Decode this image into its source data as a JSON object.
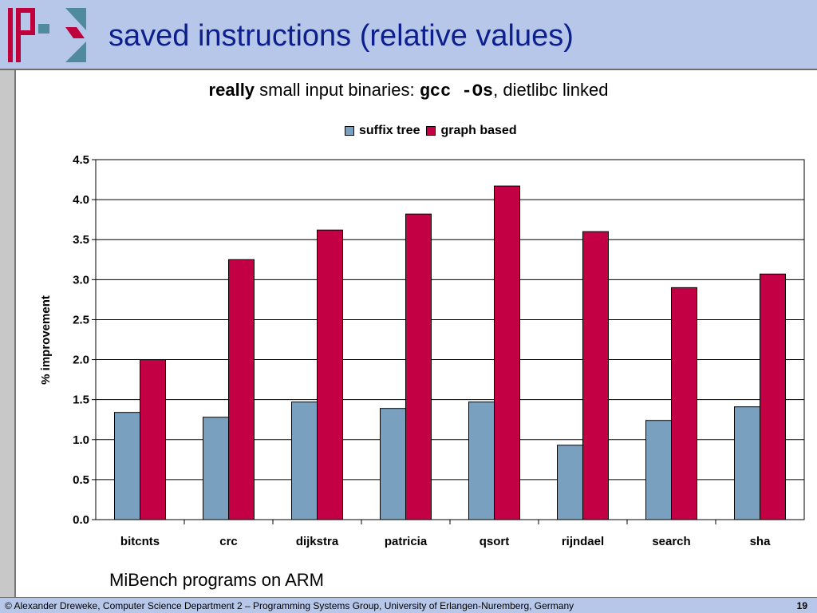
{
  "slide": {
    "title": "saved instructions (relative values)",
    "subtitle_bold": "really",
    "subtitle_text": " small input binaries: ",
    "subtitle_mono": "gcc -Os",
    "subtitle_tail": ", dietlibc linked",
    "caption": "MiBench programs on ARM",
    "footer_text": "© Alexander Dreweke, Computer Science Department 2 – Programming Systems Group, University of Erlangen-Nuremberg, Germany",
    "page_number": "19"
  },
  "colors": {
    "header_bg": "#b6c7ea",
    "title_text": "#0d1f8c",
    "logo_red": "#c0003c",
    "logo_teal": "#4f8a9f",
    "suffix_tree": "#7aa0bf",
    "graph_based": "#c40044"
  },
  "chart_data": {
    "type": "bar",
    "title": "",
    "xlabel": "",
    "ylabel": "% improvement",
    "ylim": [
      0,
      4.5
    ],
    "yticks": [
      "0.0",
      "0.5",
      "1.0",
      "1.5",
      "2.0",
      "2.5",
      "3.0",
      "3.5",
      "4.0",
      "4.5"
    ],
    "grid": true,
    "legend": "top",
    "categories": [
      "bitcnts",
      "crc",
      "dijkstra",
      "patricia",
      "qsort",
      "rijndael",
      "search",
      "sha"
    ],
    "series": [
      {
        "name": "suffix tree",
        "color": "#7aa0bf",
        "values": [
          1.34,
          1.28,
          1.47,
          1.39,
          1.47,
          0.93,
          1.24,
          1.41
        ]
      },
      {
        "name": "graph based",
        "color": "#c40044",
        "values": [
          2.0,
          3.25,
          3.62,
          3.82,
          4.17,
          3.6,
          2.9,
          3.07
        ]
      }
    ]
  }
}
